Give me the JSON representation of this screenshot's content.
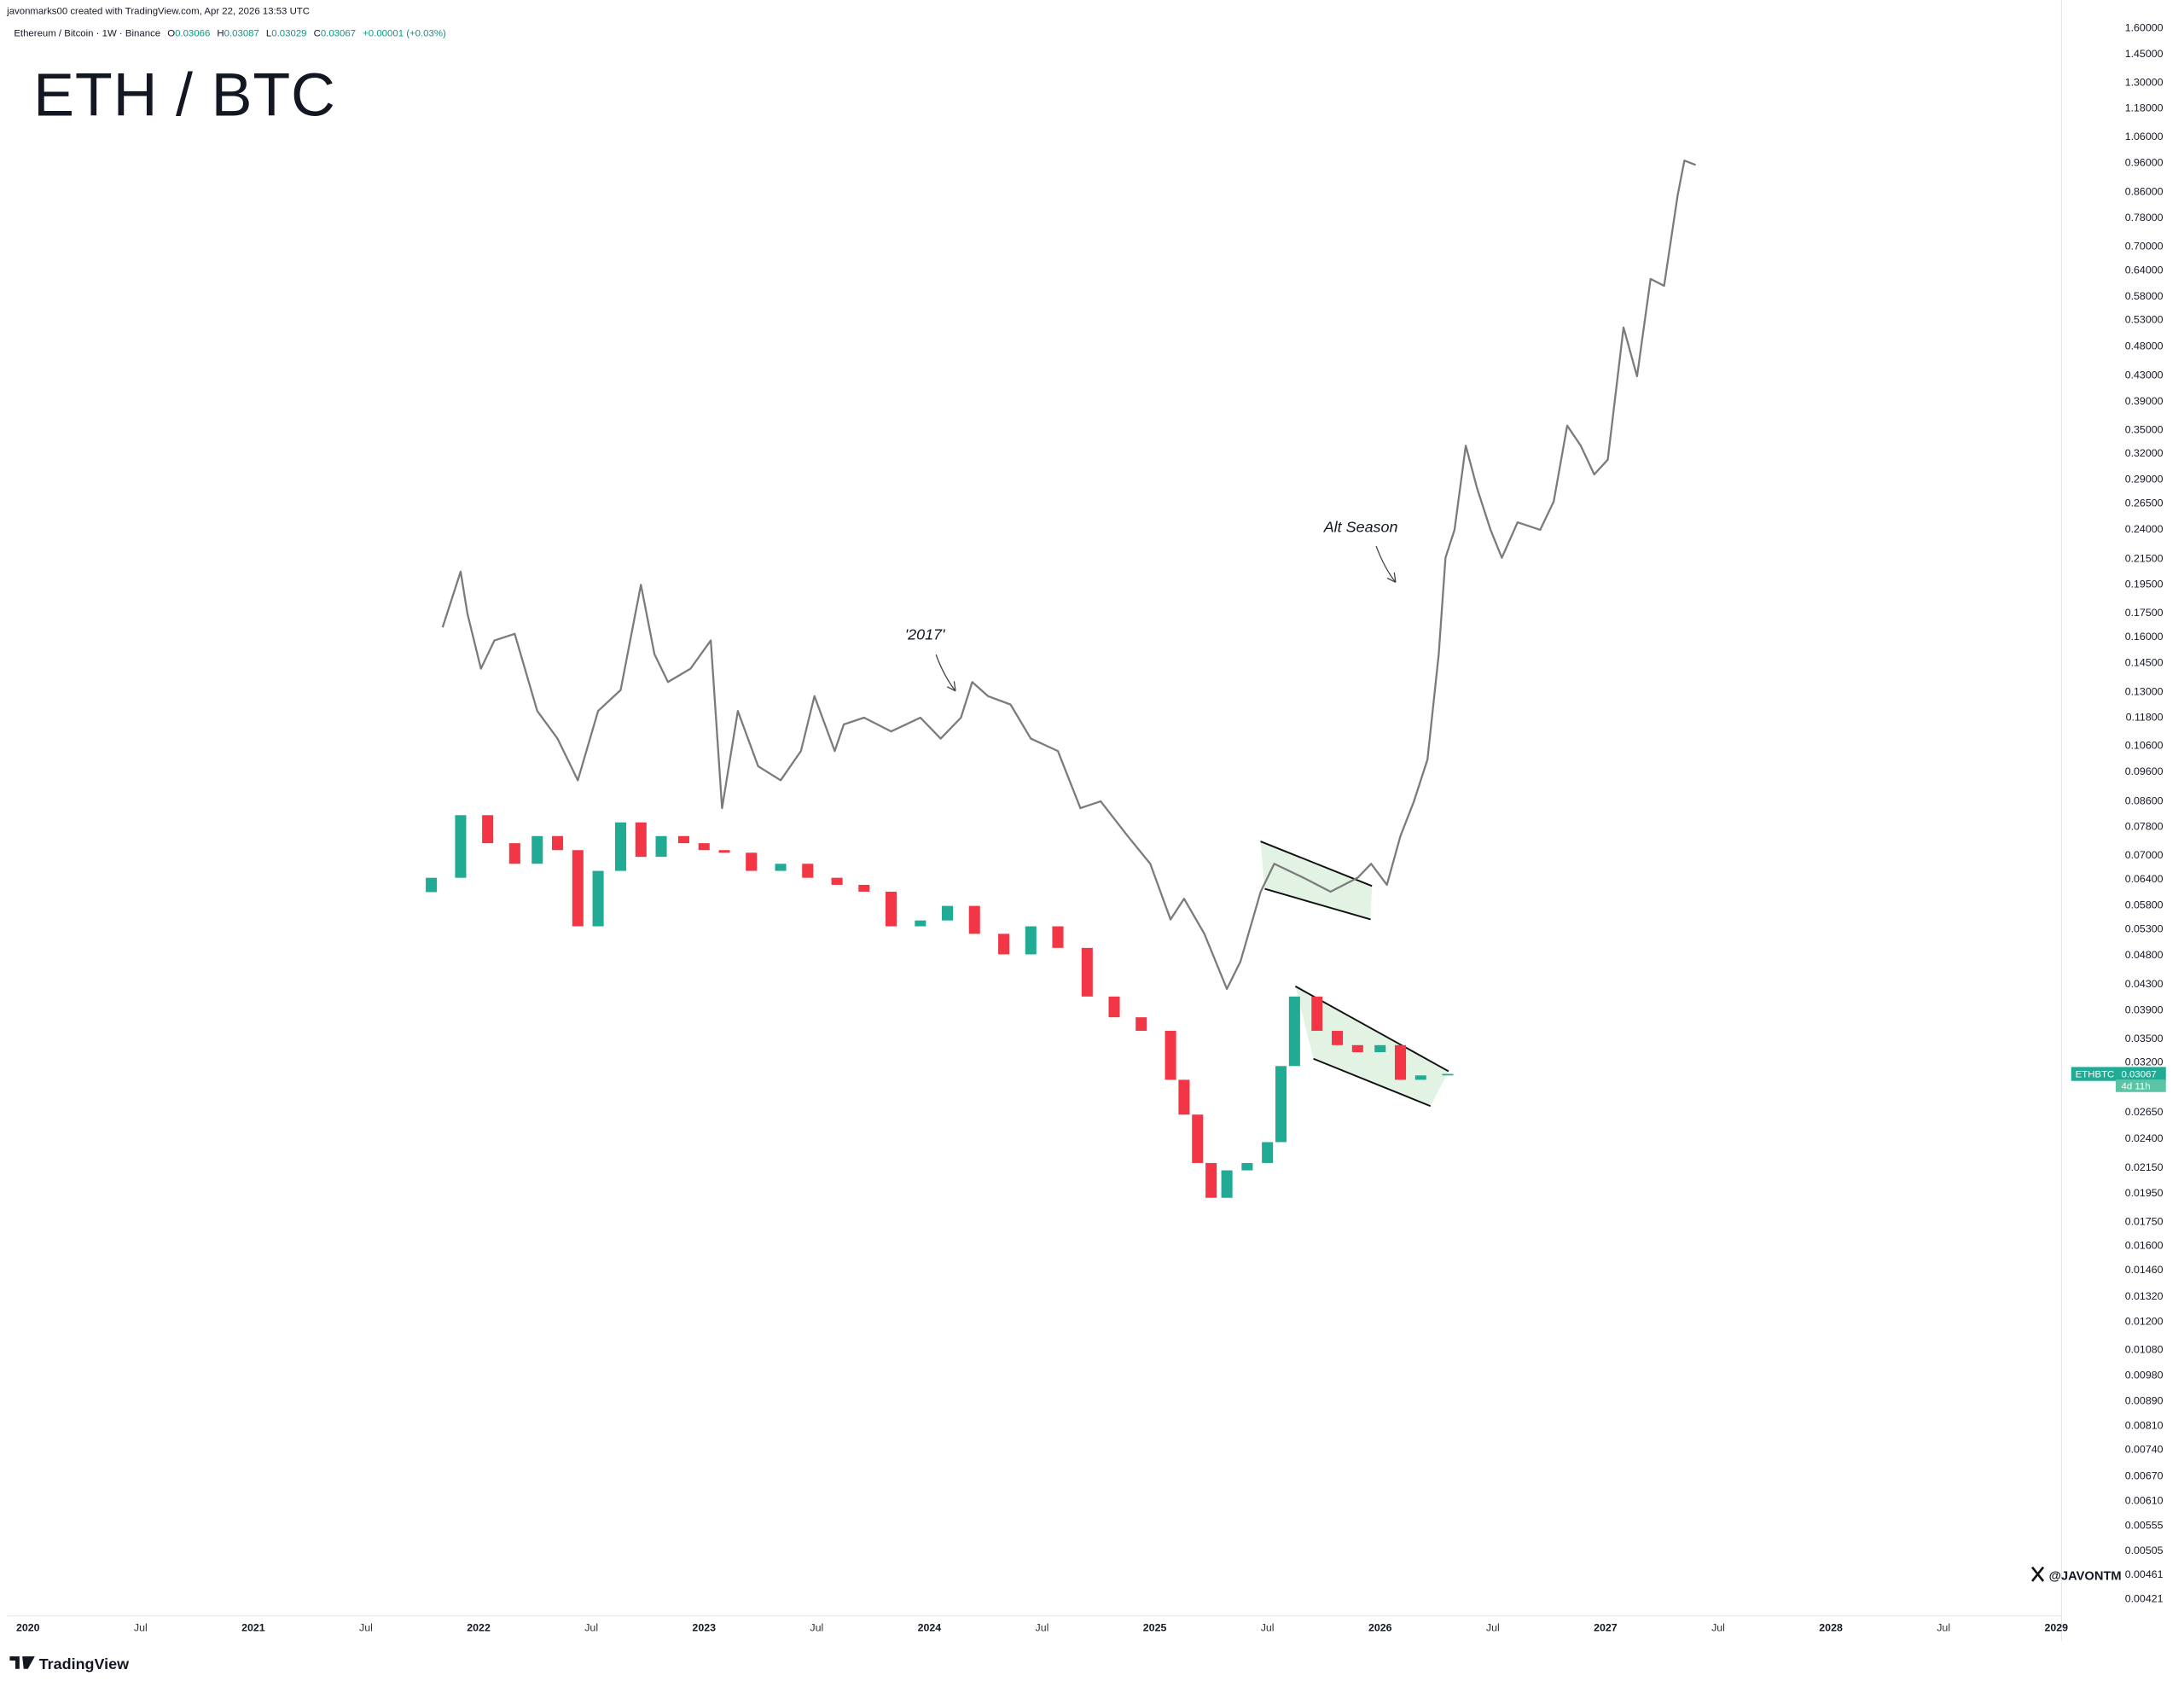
{
  "header": {
    "credit": "javonmarks00 created with TradingView.com, Apr 22, 2026 13:53 UTC",
    "symbol": "Ethereum / Bitcoin · 1W · Binance",
    "o_label": "O",
    "o_value": "0.03066",
    "h_label": "H",
    "h_value": "0.03087",
    "l_label": "L",
    "l_value": "0.03029",
    "c_label": "C",
    "c_value": "0.03067",
    "change": "+0.00001 (+0.03%)"
  },
  "price_tag": {
    "symbol": "ETHBTC",
    "price": "0.03067",
    "countdown": "4d 11h"
  },
  "watermark": "@JAVONTM",
  "brand": "TradingView",
  "chart_data": {
    "type": "candlestick",
    "title": "ETH / BTC",
    "log_scale": true,
    "grid": false,
    "annotations": [
      {
        "text": "'2017'"
      },
      {
        "text": "Alt Season"
      }
    ],
    "xlim": [
      2019.907,
      2029.023
    ],
    "xticks": [
      2020,
      {
        "value": 2020.5,
        "label": "Jul"
      },
      2021,
      {
        "value": 2021.5,
        "label": "Jul"
      },
      2022,
      {
        "value": 2022.5,
        "label": "Jul"
      },
      2023,
      {
        "value": 2023.5,
        "label": "Jul"
      },
      2024,
      {
        "value": 2024.5,
        "label": "Jul"
      },
      2025,
      {
        "value": 2025.5,
        "label": "Jul"
      },
      2026,
      {
        "value": 2026.5,
        "label": "Jul"
      },
      2027,
      {
        "value": 2027.5,
        "label": "Jul"
      },
      2028,
      {
        "value": 2028.5,
        "label": "Jul"
      },
      2029
    ],
    "ylim": [
      0.00395,
      1.78
    ],
    "yticks": [
      {
        "value": 1.6,
        "label": "1.60000"
      },
      {
        "value": 1.45,
        "label": "1.45000"
      },
      {
        "value": 1.3,
        "label": "1.30000"
      },
      {
        "value": 1.18,
        "label": "1.18000"
      },
      {
        "value": 1.06,
        "label": "1.06000"
      },
      {
        "value": 0.96,
        "label": "0.96000"
      },
      {
        "value": 0.86,
        "label": "0.86000"
      },
      {
        "value": 0.78,
        "label": "0.78000"
      },
      {
        "value": 0.7,
        "label": "0.70000"
      },
      {
        "value": 0.64,
        "label": "0.64000"
      },
      {
        "value": 0.58,
        "label": "0.58000"
      },
      {
        "value": 0.53,
        "label": "0.53000"
      },
      {
        "value": 0.48,
        "label": "0.48000"
      },
      {
        "value": 0.43,
        "label": "0.43000"
      },
      {
        "value": 0.39,
        "label": "0.39000"
      },
      {
        "value": 0.35,
        "label": "0.35000"
      },
      {
        "value": 0.32,
        "label": "0.32000"
      },
      {
        "value": 0.29,
        "label": "0.29000"
      },
      {
        "value": 0.265,
        "label": "0.26500"
      },
      {
        "value": 0.24,
        "label": "0.24000"
      },
      {
        "value": 0.215,
        "label": "0.21500"
      },
      {
        "value": 0.195,
        "label": "0.19500"
      },
      {
        "value": 0.175,
        "label": "0.17500"
      },
      {
        "value": 0.16,
        "label": "0.16000"
      },
      {
        "value": 0.145,
        "label": "0.14500"
      },
      {
        "value": 0.13,
        "label": "0.13000"
      },
      {
        "value": 0.118,
        "label": "0.11800"
      },
      {
        "value": 0.106,
        "label": "0.10600"
      },
      {
        "value": 0.096,
        "label": "0.09600"
      },
      {
        "value": 0.086,
        "label": "0.08600"
      },
      {
        "value": 0.078,
        "label": "0.07800"
      },
      {
        "value": 0.07,
        "label": "0.07000"
      },
      {
        "value": 0.064,
        "label": "0.06400"
      },
      {
        "value": 0.058,
        "label": "0.05800"
      },
      {
        "value": 0.053,
        "label": "0.05300"
      },
      {
        "value": 0.048,
        "label": "0.04800"
      },
      {
        "value": 0.043,
        "label": "0.04300"
      },
      {
        "value": 0.039,
        "label": "0.03900"
      },
      {
        "value": 0.035,
        "label": "0.03500"
      },
      {
        "value": 0.032,
        "label": "0.03200"
      },
      {
        "value": 0.0265,
        "label": "0.02650"
      },
      {
        "value": 0.024,
        "label": "0.02400"
      },
      {
        "value": 0.0215,
        "label": "0.02150"
      },
      {
        "value": 0.0195,
        "label": "0.01950"
      },
      {
        "value": 0.0175,
        "label": "0.01750"
      },
      {
        "value": 0.016,
        "label": "0.01600"
      },
      {
        "value": 0.0146,
        "label": "0.01460"
      },
      {
        "value": 0.0132,
        "label": "0.01320"
      },
      {
        "value": 0.012,
        "label": "0.01200"
      },
      {
        "value": 0.0108,
        "label": "0.01080"
      },
      {
        "value": 0.0098,
        "label": "0.00980"
      },
      {
        "value": 0.0089,
        "label": "0.00890"
      },
      {
        "value": 0.0081,
        "label": "0.00810"
      },
      {
        "value": 0.0074,
        "label": "0.00740"
      },
      {
        "value": 0.0067,
        "label": "0.00670"
      },
      {
        "value": 0.0061,
        "label": "0.00610"
      },
      {
        "value": 0.00555,
        "label": "0.00555"
      },
      {
        "value": 0.00505,
        "label": "0.00505"
      },
      {
        "value": 0.00461,
        "label": "0.00461"
      },
      {
        "value": 0.00421,
        "label": "0.00421"
      }
    ],
    "up_color": "#22ab94",
    "down_color": "#f23645",
    "x": [
      2021.79,
      2021.92,
      2022.04,
      2022.16,
      2022.26,
      2022.35,
      2022.44,
      2022.53,
      2022.63,
      2022.72,
      2022.81,
      2022.91,
      2023.0,
      2023.09,
      2023.21,
      2023.34,
      2023.46,
      2023.59,
      2023.71,
      2023.83,
      2023.96,
      2024.08,
      2024.2,
      2024.33,
      2024.45,
      2024.57,
      2024.7,
      2024.82,
      2024.94,
      2025.07,
      2025.13,
      2025.19,
      2025.25,
      2025.32,
      2025.41,
      2025.5,
      2025.56,
      2025.62,
      2025.72,
      2025.81,
      2025.9,
      2026.0,
      2026.09,
      2026.18,
      2026.3
    ],
    "open": [
      0.061,
      0.0644,
      0.0816,
      0.0734,
      0.0679,
      0.0754,
      0.0715,
      0.0536,
      0.0661,
      0.0794,
      0.0697,
      0.0754,
      0.0734,
      0.0715,
      0.0708,
      0.0661,
      0.0679,
      0.0644,
      0.0627,
      0.0611,
      0.0536,
      0.0548,
      0.0579,
      0.0521,
      0.0482,
      0.0536,
      0.0494,
      0.0411,
      0.038,
      0.0361,
      0.03,
      0.0263,
      0.0219,
      0.0192,
      0.0213,
      0.0219,
      0.0237,
      0.0316,
      0.0411,
      0.0361,
      0.0342,
      0.0333,
      0.0342,
      0.03,
      0.0305
    ],
    "close": [
      0.0644,
      0.0816,
      0.0734,
      0.0679,
      0.0754,
      0.0715,
      0.0536,
      0.0661,
      0.0794,
      0.0697,
      0.0754,
      0.0734,
      0.0715,
      0.0708,
      0.0661,
      0.0679,
      0.0644,
      0.0627,
      0.0611,
      0.0536,
      0.0548,
      0.0579,
      0.0521,
      0.0482,
      0.0536,
      0.0494,
      0.0411,
      0.038,
      0.0361,
      0.03,
      0.0263,
      0.0219,
      0.0192,
      0.0213,
      0.0219,
      0.0237,
      0.0316,
      0.0411,
      0.0361,
      0.0342,
      0.0333,
      0.0342,
      0.03,
      0.0305,
      0.03067
    ],
    "projection": {
      "type": "line",
      "color": "#7b7b7b",
      "x": [
        2021.84,
        2021.92,
        2021.95,
        2022.01,
        2022.07,
        2022.16,
        2022.26,
        2022.35,
        2022.44,
        2022.53,
        2022.63,
        2022.72,
        2022.78,
        2022.84,
        2022.94,
        2023.03,
        2023.08,
        2023.15,
        2023.24,
        2023.34,
        2023.43,
        2023.49,
        2023.58,
        2023.62,
        2023.71,
        2023.83,
        2023.96,
        2024.05,
        2024.14,
        2024.19,
        2024.26,
        2024.36,
        2024.45,
        2024.57,
        2024.67,
        2024.76,
        2024.88,
        2024.98,
        2025.07,
        2025.13,
        2025.22,
        2025.32,
        2025.38,
        2025.47,
        2025.53,
        2025.66,
        2025.78,
        2025.9,
        2025.96,
        2026.03,
        2026.09,
        2026.15,
        2026.21,
        2026.26,
        2026.29,
        2026.33,
        2026.38,
        2026.43,
        2026.49,
        2026.54,
        2026.61,
        2026.71,
        2026.77,
        2026.83,
        2026.89,
        2026.95,
        2027.01,
        2027.08,
        2027.14,
        2027.2,
        2027.26,
        2027.32,
        2027.35,
        2027.4
      ],
      "values": [
        0.166,
        0.205,
        0.175,
        0.142,
        0.158,
        0.162,
        0.121,
        0.109,
        0.0931,
        0.121,
        0.131,
        0.195,
        0.15,
        0.135,
        0.142,
        0.158,
        0.0838,
        0.121,
        0.0982,
        0.0931,
        0.104,
        0.128,
        0.104,
        0.115,
        0.118,
        0.112,
        0.118,
        0.109,
        0.118,
        0.135,
        0.128,
        0.124,
        0.109,
        0.104,
        0.0838,
        0.086,
        0.0754,
        0.0679,
        0.055,
        0.0595,
        0.0521,
        0.0423,
        0.0469,
        0.0611,
        0.0679,
        0.0644,
        0.0611,
        0.0644,
        0.0679,
        0.0627,
        0.0754,
        0.086,
        0.1007,
        0.15,
        0.216,
        0.24,
        0.33,
        0.281,
        0.24,
        0.216,
        0.247,
        0.24,
        0.267,
        0.356,
        0.33,
        0.296,
        0.313,
        0.516,
        0.429,
        0.62,
        0.604,
        0.85,
        0.97,
        0.954
      ]
    }
  }
}
